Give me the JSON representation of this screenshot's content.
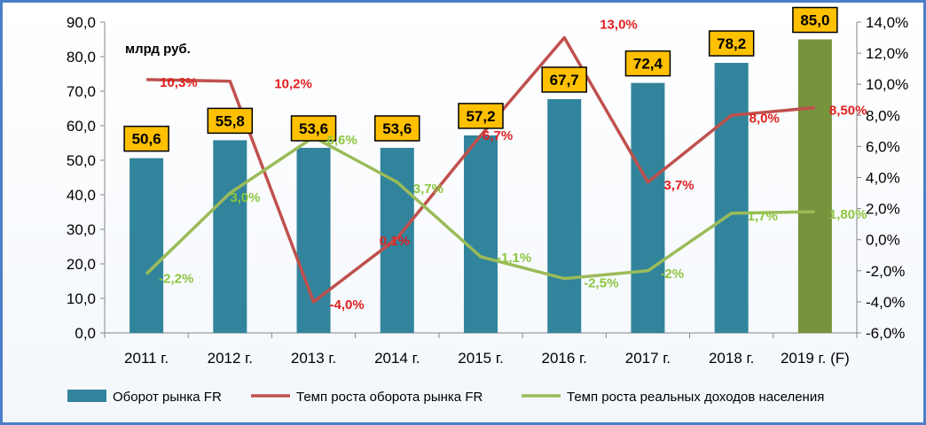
{
  "chart_data": {
    "type": "bar",
    "unit_label": "млрд руб.",
    "categories": [
      "2011 г.",
      "2012 г.",
      "2013 г.",
      "2014 г.",
      "2015 г.",
      "2016 г.",
      "2017 г.",
      "2018 г.",
      "2019 г. (F)"
    ],
    "y_left": {
      "ylim": [
        0,
        90
      ],
      "ticks": [
        "0,0",
        "10,0",
        "20,0",
        "30,0",
        "40,0",
        "50,0",
        "60,0",
        "70,0",
        "80,0",
        "90,0"
      ]
    },
    "y_right": {
      "ylim": [
        -6,
        14
      ],
      "ticks": [
        "-6,0%",
        "-4,0%",
        "-2,0%",
        "0,0%",
        "2,0%",
        "4,0%",
        "6,0%",
        "8,0%",
        "10,0%",
        "12,0%",
        "14,0%"
      ]
    },
    "series": [
      {
        "name": "Оборот рынка FR",
        "kind": "bar",
        "axis": "left",
        "color": "#31849b",
        "highlight_color": "#77933c",
        "values": [
          50.6,
          55.8,
          53.6,
          53.6,
          57.2,
          67.7,
          72.4,
          78.2,
          85.0
        ],
        "labels": [
          "50,6",
          "55,8",
          "53,6",
          "53,6",
          "57,2",
          "67,7",
          "72,4",
          "78,2",
          "85,0"
        ]
      },
      {
        "name": "Темп роста оборота рынка FR",
        "kind": "line",
        "axis": "right",
        "color": "#c0504d",
        "label_color": "#e02020",
        "values": [
          10.3,
          10.2,
          -4.0,
          0.1,
          6.7,
          13.0,
          3.7,
          8.0,
          8.5
        ],
        "labels": [
          "10,3%",
          "10,2%",
          "-4,0%",
          "0,1%",
          "6,7%",
          "13,0%",
          "3,7%",
          "8,0%",
          "8,50%"
        ]
      },
      {
        "name": "Темп роста реальных доходов населения",
        "kind": "line",
        "axis": "right",
        "color": "#9bbb59",
        "label_color": "#8cc63f",
        "values": [
          -2.2,
          3.0,
          6.6,
          3.7,
          -1.1,
          -2.5,
          -2.0,
          1.7,
          1.8
        ],
        "labels": [
          "-2,2%",
          "3,0%",
          "6,6%",
          "3,7%",
          "-1,1%",
          "-2,5%",
          "-2%",
          "1,7%",
          "1,80%"
        ]
      }
    ],
    "legend_position": "bottom",
    "grid": false
  }
}
